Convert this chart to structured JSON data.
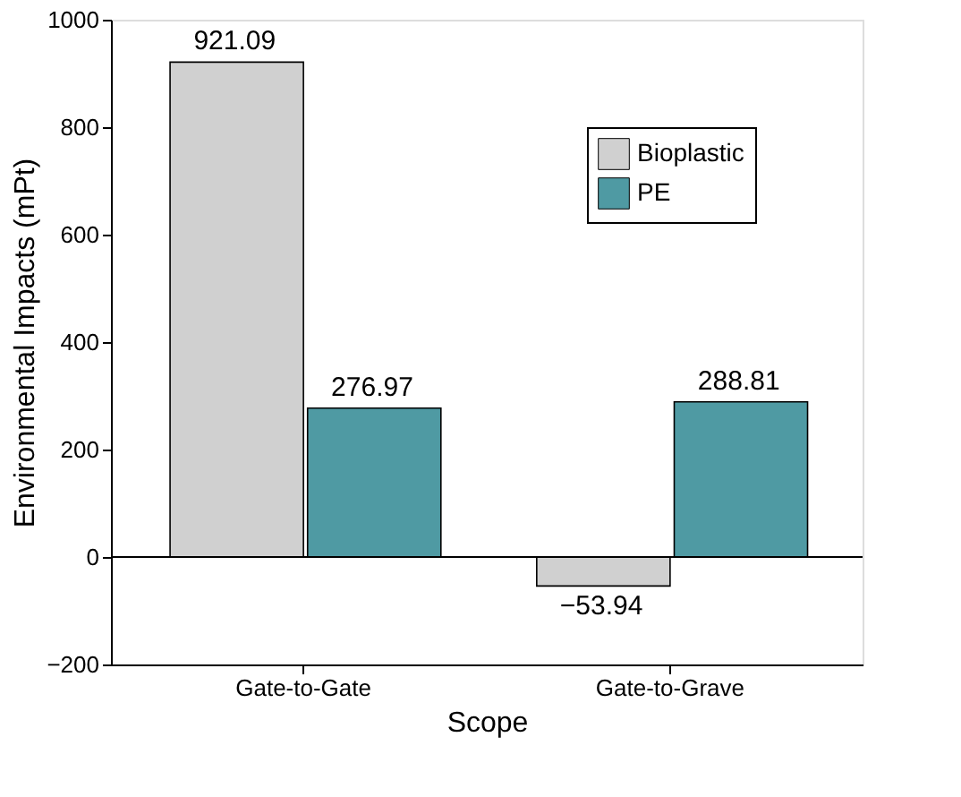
{
  "chart_data": {
    "type": "bar",
    "xlabel": "Scope",
    "ylabel": "Environmental Impacts (mPt)",
    "categories": [
      "Gate-to-Gate",
      "Gate-to-Grave"
    ],
    "series": [
      {
        "name": "Bioplastic",
        "color": "#d0d0d0",
        "values": [
          921.09,
          -53.94
        ],
        "value_labels": [
          "921.09",
          "−53.94"
        ]
      },
      {
        "name": "PE",
        "color": "#4f9aa3",
        "values": [
          276.97,
          288.81
        ],
        "value_labels": [
          "276.97",
          "288.81"
        ]
      }
    ],
    "ylim": [
      -200,
      1000
    ],
    "yticks": [
      -200,
      0,
      200,
      400,
      600,
      800,
      1000
    ],
    "ref_lines": [
      {
        "axis": "y",
        "value": 0
      }
    ],
    "grid": false,
    "legend": "top right"
  }
}
